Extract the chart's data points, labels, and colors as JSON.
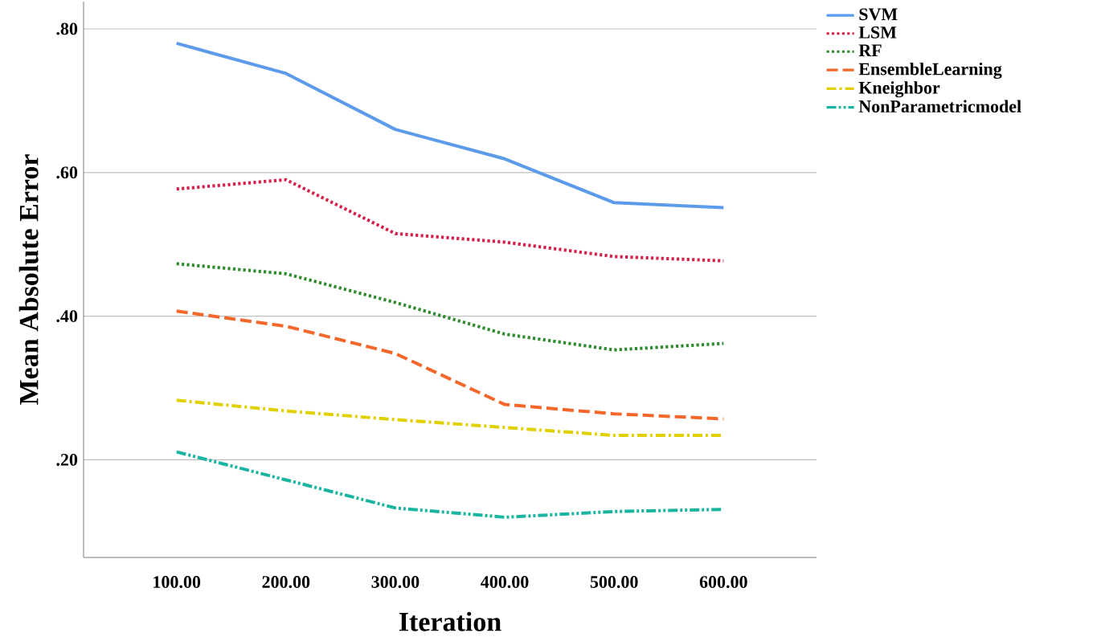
{
  "chart_data": {
    "type": "line",
    "xlabel": "Iteration",
    "ylabel": "Mean Absolute Error",
    "x": [
      100,
      200,
      300,
      400,
      500,
      600
    ],
    "xlim": [
      15,
      685
    ],
    "ylim": [
      0.064,
      0.838
    ],
    "xticks": [
      {
        "value": 100,
        "label": "100.00"
      },
      {
        "value": 200,
        "label": "200.00"
      },
      {
        "value": 300,
        "label": "300.00"
      },
      {
        "value": 400,
        "label": "400.00"
      },
      {
        "value": 500,
        "label": "500.00"
      },
      {
        "value": 600,
        "label": "600.00"
      }
    ],
    "yticks": [
      {
        "value": 0.2,
        "label": ".20"
      },
      {
        "value": 0.4,
        "label": ".40"
      },
      {
        "value": 0.6,
        "label": ".60"
      },
      {
        "value": 0.8,
        "label": ".80"
      }
    ],
    "grid": "y",
    "legend": "top right",
    "marker": "none",
    "series": [
      {
        "name": "SVM",
        "color": "#5b9bea",
        "line_style": "solid",
        "values": [
          0.78,
          0.738,
          0.66,
          0.619,
          0.558,
          0.551
        ]
      },
      {
        "name": "LSM",
        "color": "#d6204a",
        "line_style": "dotted",
        "values": [
          0.577,
          0.59,
          0.515,
          0.503,
          0.483,
          0.477
        ]
      },
      {
        "name": "RF",
        "color": "#2e8b2e",
        "line_style": "dotted",
        "values": [
          0.473,
          0.459,
          0.419,
          0.375,
          0.353,
          0.362
        ]
      },
      {
        "name": "EnsembleLearning",
        "color": "#f4672a",
        "line_style": "dashed",
        "values": [
          0.407,
          0.386,
          0.348,
          0.277,
          0.264,
          0.257
        ]
      },
      {
        "name": "Kneighbor",
        "color": "#e0d000",
        "line_style": "dashdot",
        "values": [
          0.283,
          0.268,
          0.256,
          0.245,
          0.234,
          0.234
        ]
      },
      {
        "name": "NonParametricmodel",
        "color": "#1ab5a0",
        "line_style": "dashdotdot",
        "values": [
          0.211,
          0.172,
          0.133,
          0.12,
          0.128,
          0.131
        ]
      }
    ]
  }
}
